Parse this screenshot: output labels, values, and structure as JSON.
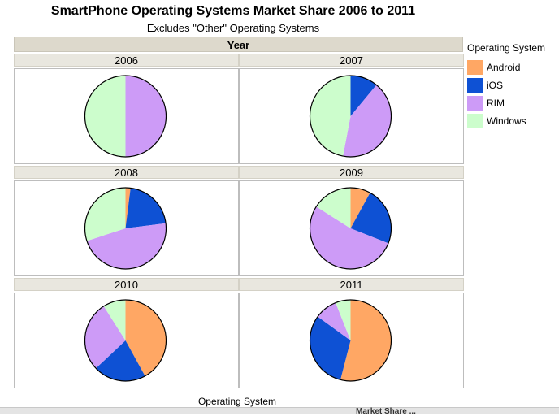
{
  "header": {
    "title": "SmartPhone Operating Systems Market Share 2006 to 2011",
    "subtitle": "Excludes \"Other\" Operating Systems",
    "facet_label": "Year"
  },
  "legend": {
    "title": "Operating System",
    "items": [
      {
        "label": "Android",
        "color": "#ffa764"
      },
      {
        "label": "iOS",
        "color": "#0e51d4"
      },
      {
        "label": "RIM",
        "color": "#cd9bf7"
      },
      {
        "label": "Windows",
        "color": "#ccfdcc"
      }
    ]
  },
  "xlabel": "Operating System",
  "bottom_strip_text": "Market Share ...",
  "chart_data": {
    "type": "pie",
    "title": "SmartPhone Operating Systems Market Share 2006 to 2011",
    "subtitle": "Excludes \"Other\" Operating Systems",
    "facet": "Year",
    "xlabel": "Operating System",
    "categories": [
      "Android",
      "iOS",
      "RIM",
      "Windows"
    ],
    "colors": [
      "#ffa764",
      "#0e51d4",
      "#cd9bf7",
      "#ccfdcc"
    ],
    "legend_position": "right",
    "panels": [
      {
        "year": "2006",
        "values": [
          0,
          0,
          50,
          50
        ]
      },
      {
        "year": "2007",
        "values": [
          0,
          11,
          42,
          47
        ]
      },
      {
        "year": "2008",
        "values": [
          2,
          21,
          47,
          30
        ]
      },
      {
        "year": "2009",
        "values": [
          8,
          23,
          53,
          16
        ]
      },
      {
        "year": "2010",
        "values": [
          42,
          21,
          28,
          9
        ]
      },
      {
        "year": "2011",
        "values": [
          54,
          31,
          9,
          6
        ]
      }
    ]
  }
}
